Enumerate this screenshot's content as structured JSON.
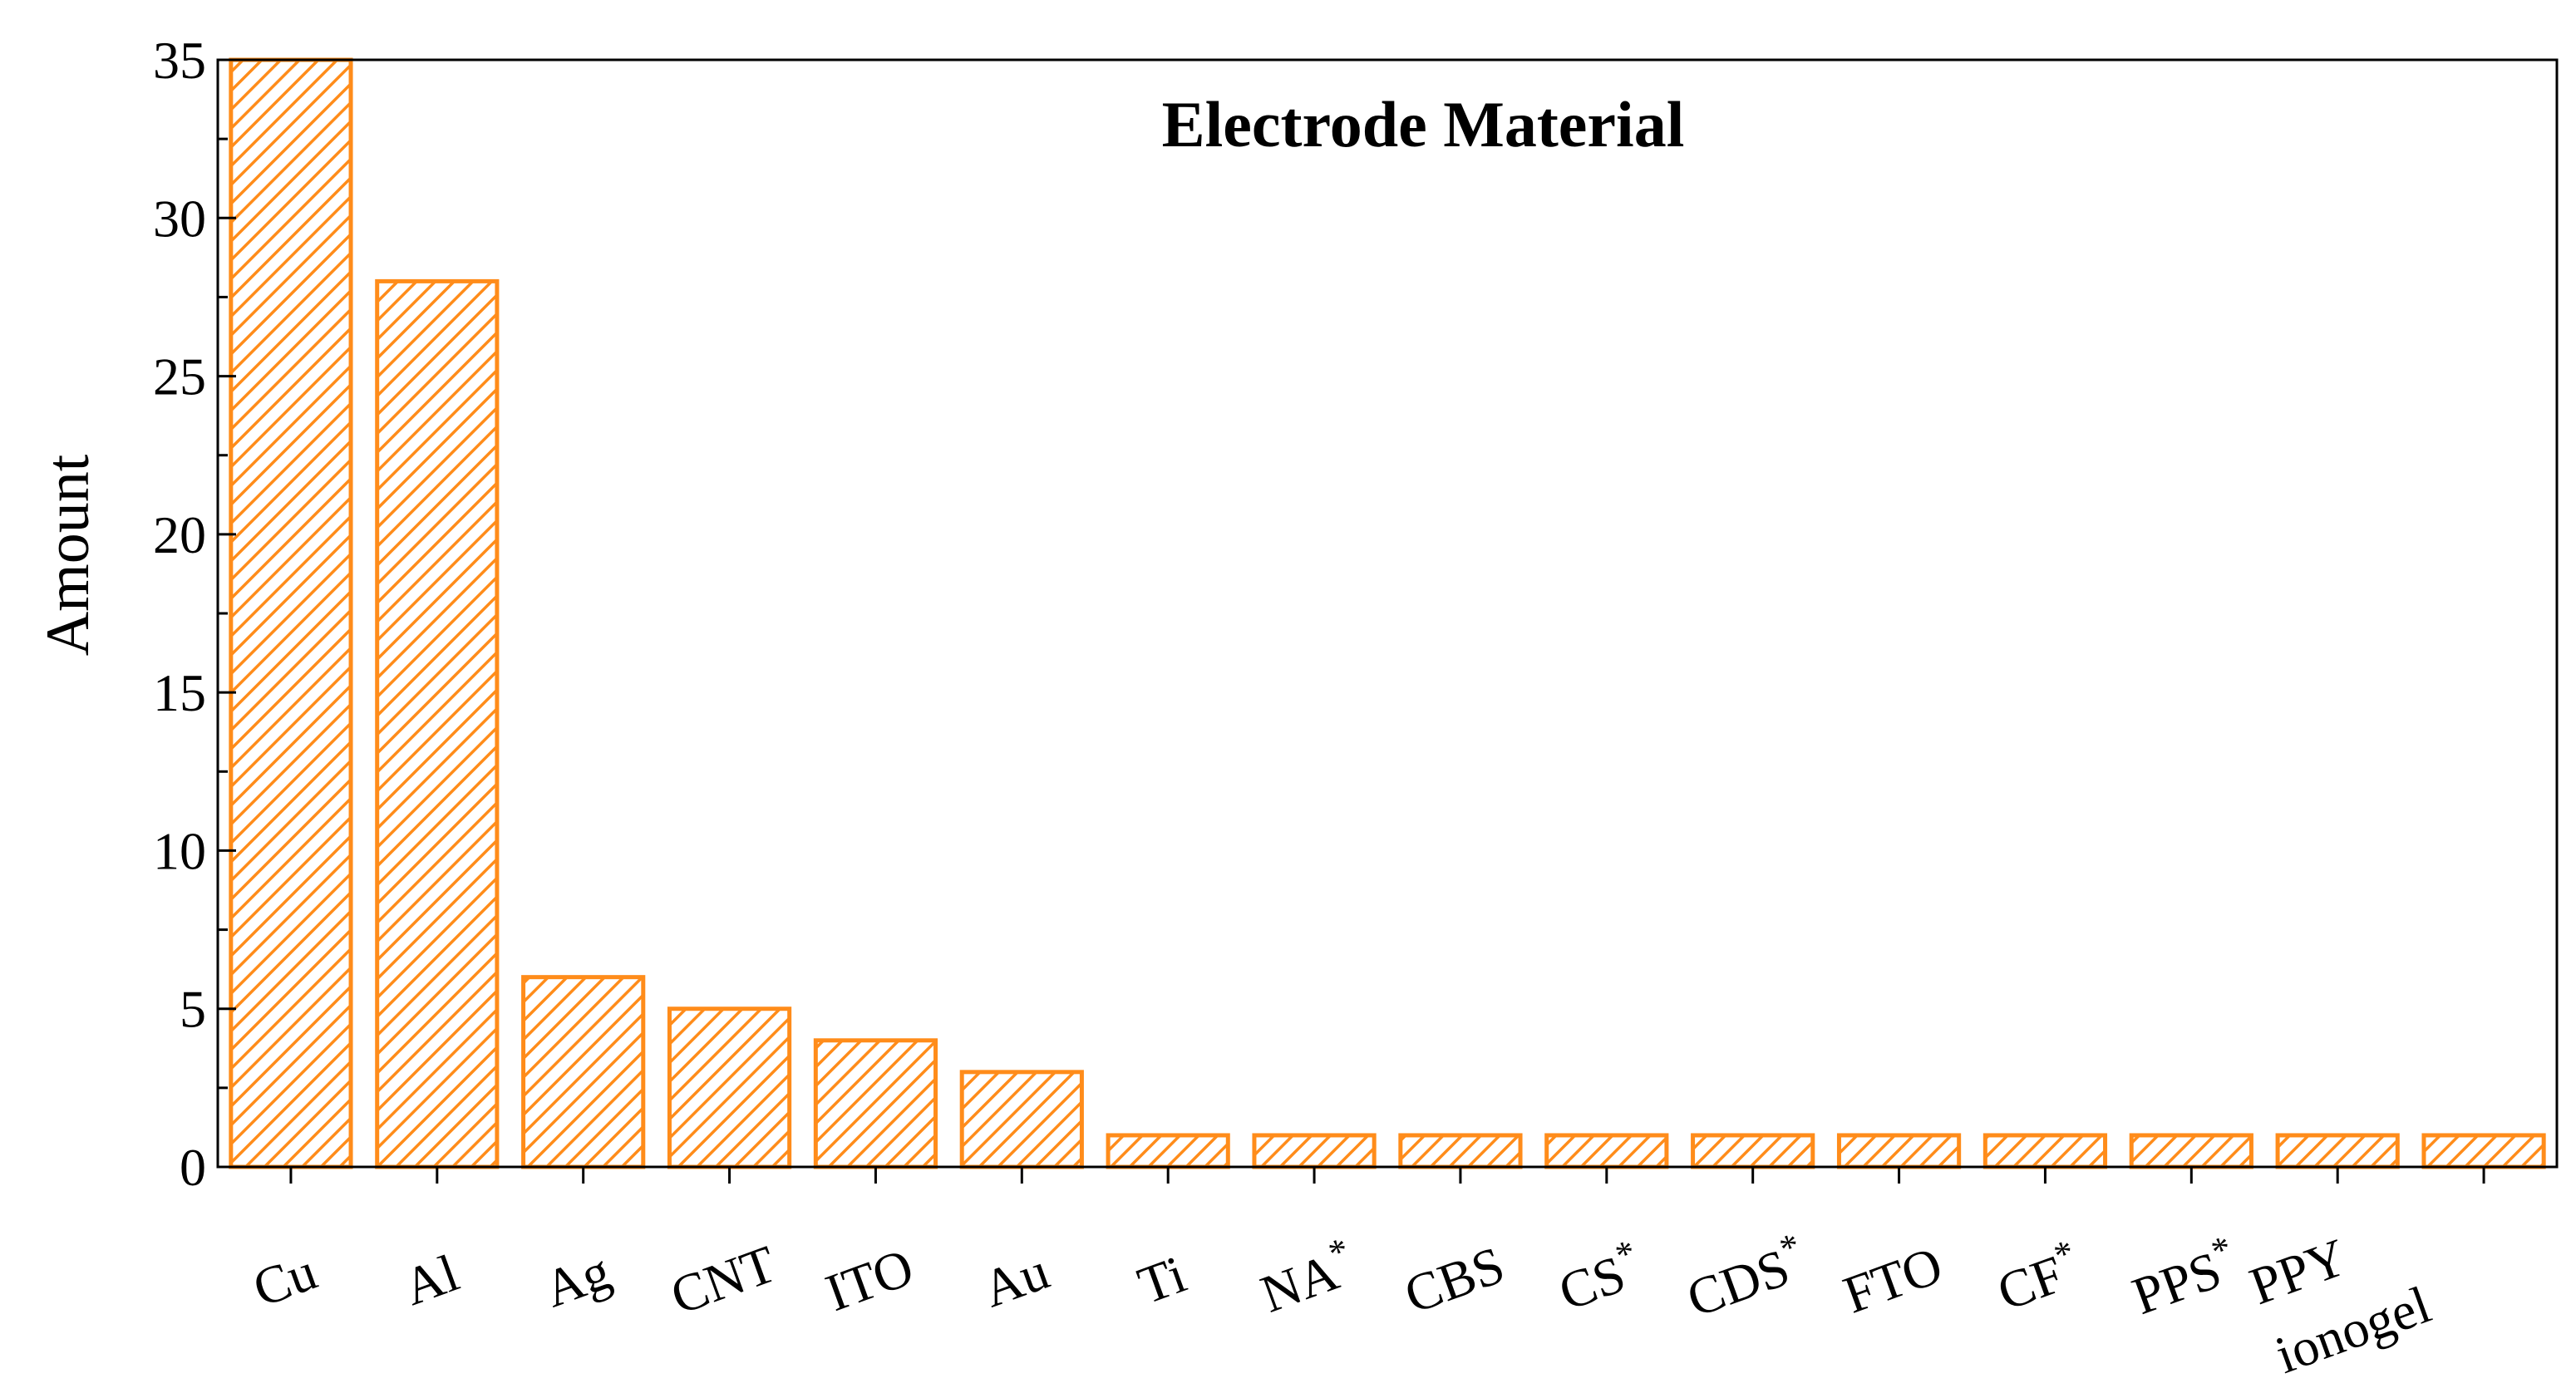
{
  "chart_data": {
    "type": "bar",
    "title": "Electrode Material",
    "xlabel": "",
    "ylabel": "Amount",
    "ylim": [
      0,
      35
    ],
    "yticks": [
      0,
      5,
      10,
      15,
      20,
      25,
      30,
      35
    ],
    "grid": false,
    "legend": "none",
    "bar_color": "#ff8c1a",
    "bar_pattern": "diagonal-hatch",
    "categories": [
      {
        "base": "Cu",
        "sup": ""
      },
      {
        "base": "Al",
        "sup": ""
      },
      {
        "base": "Ag",
        "sup": ""
      },
      {
        "base": "CNT",
        "sup": ""
      },
      {
        "base": "ITO",
        "sup": ""
      },
      {
        "base": "Au",
        "sup": ""
      },
      {
        "base": "Ti",
        "sup": ""
      },
      {
        "base": "NA",
        "sup": "*"
      },
      {
        "base": "CBS",
        "sup": ""
      },
      {
        "base": "CS",
        "sup": "*"
      },
      {
        "base": "CDS",
        "sup": "*"
      },
      {
        "base": "FTO",
        "sup": ""
      },
      {
        "base": "CF",
        "sup": "*"
      },
      {
        "base": "PPS",
        "sup": "*"
      },
      {
        "base": "PPY",
        "sup": "",
        "line2": "ionogel"
      },
      {
        "base": "ionogel",
        "sup": ""
      }
    ],
    "values": [
      35,
      28,
      6,
      5,
      4,
      3,
      1,
      1,
      1,
      1,
      1,
      1,
      1,
      1,
      1,
      1
    ]
  }
}
